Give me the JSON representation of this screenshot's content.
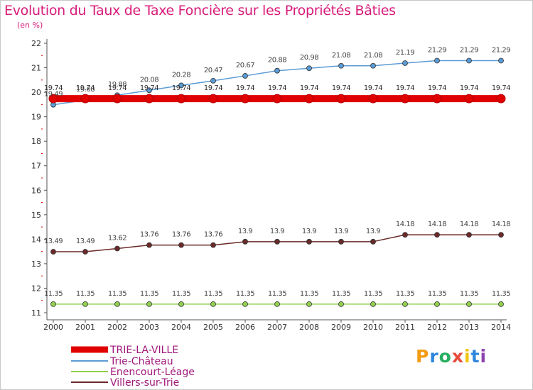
{
  "chart_data": {
    "type": "line",
    "title": "Evolution du Taux de Taxe Foncière sur les Propriétés Bâties",
    "subtitle": "(en %)",
    "xlabel": "",
    "ylabel": "",
    "categories": [
      "2000",
      "2001",
      "2002",
      "2003",
      "2004",
      "2005",
      "2006",
      "2007",
      "2008",
      "2009",
      "2010",
      "2011",
      "2012",
      "2013",
      "2014"
    ],
    "ylim": [
      11,
      22
    ],
    "yticks": [
      11,
      12,
      13,
      14,
      15,
      16,
      17,
      18,
      19,
      20,
      21,
      22
    ],
    "grid": false,
    "series": [
      {
        "name": "TRIE-LA-VILLE",
        "color": "#e00000",
        "values": [
          19.74,
          19.74,
          19.74,
          19.74,
          19.74,
          19.74,
          19.74,
          19.74,
          19.74,
          19.74,
          19.74,
          19.74,
          19.74,
          19.74,
          19.74
        ],
        "labels": [
          "19.74",
          "19.74",
          "19.74",
          "19.74",
          "19.74",
          "19.74",
          "19.74",
          "19.74",
          "19.74",
          "19.74",
          "19.74",
          "19.74",
          "19.74",
          "19.74",
          "19.74"
        ]
      },
      {
        "name": "Trie-Château",
        "color": "#5b9bd5",
        "values": [
          19.49,
          19.68,
          19.88,
          20.08,
          20.28,
          20.47,
          20.67,
          20.88,
          20.98,
          21.08,
          21.08,
          21.19,
          21.29,
          21.29,
          21.29
        ],
        "labels": [
          "19.49",
          "19.68",
          "19.88",
          "20.08",
          "20.28",
          "20.47",
          "20.67",
          "20.88",
          "20.98",
          "21.08",
          "21.08",
          "21.19",
          "21.29",
          "21.29",
          "21.29"
        ]
      },
      {
        "name": "Enencourt-Léage",
        "color": "#92d050",
        "values": [
          11.35,
          11.35,
          11.35,
          11.35,
          11.35,
          11.35,
          11.35,
          11.35,
          11.35,
          11.35,
          11.35,
          11.35,
          11.35,
          11.35,
          11.35
        ],
        "labels": [
          "11.35",
          "11.35",
          "11.35",
          "11.35",
          "11.35",
          "11.35",
          "11.35",
          "11.35",
          "11.35",
          "11.35",
          "11.35",
          "11.35",
          "11.35",
          "11.35",
          "11.35"
        ]
      },
      {
        "name": "Villers-sur-Trie",
        "color": "#6b2a2a",
        "values": [
          13.49,
          13.49,
          13.62,
          13.76,
          13.76,
          13.76,
          13.9,
          13.9,
          13.9,
          13.9,
          13.9,
          14.18,
          14.18,
          14.18,
          14.18
        ],
        "labels": [
          "13.49",
          "13.49",
          "13.62",
          "13.76",
          "13.76",
          "13.76",
          "13.9",
          "13.9",
          "13.9",
          "13.9",
          "13.9",
          "14.18",
          "14.18",
          "14.18",
          "14.18"
        ]
      }
    ]
  },
  "brand": {
    "letters": [
      "P",
      "r",
      "o",
      "x",
      "i",
      "t",
      "i"
    ],
    "colors": [
      "#f39c12",
      "#2e86de",
      "#27ae60",
      "#e74c3c",
      "#f1c40f",
      "#2e86de",
      "#8e44ad"
    ]
  }
}
